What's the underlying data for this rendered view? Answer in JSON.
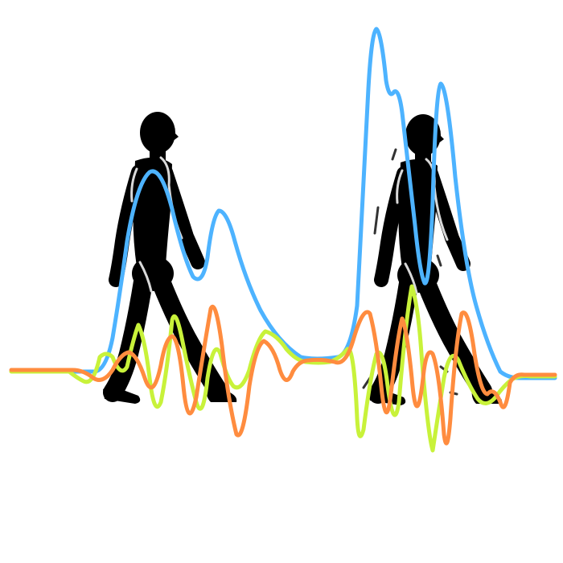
{
  "figure": {
    "subject": "walking-silhouettes-with-gait-signals",
    "colors": {
      "background": "#ffffff",
      "silhouette": "#000000",
      "highlight": "#d9d9d9",
      "signal_blue": "#4db3ff",
      "signal_green": "#c8f23a",
      "signal_orange": "#ff8c3f"
    },
    "signals": [
      {
        "id": "blue",
        "color": "#4db3ff"
      },
      {
        "id": "green",
        "color": "#c8f23a"
      },
      {
        "id": "orange",
        "color": "#ff8c3f"
      }
    ]
  }
}
